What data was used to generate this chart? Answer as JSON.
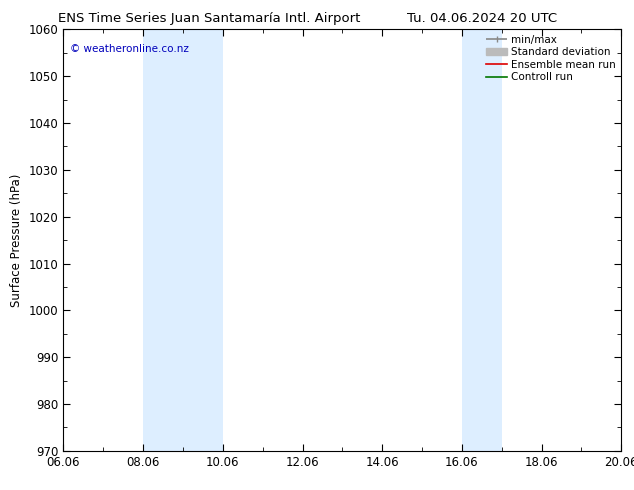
{
  "title_left": "ENS Time Series Juan Santamaría Intl. Airport",
  "title_right": "Tu. 04.06.2024 20 UTC",
  "ylabel": "Surface Pressure (hPa)",
  "ylim": [
    970,
    1060
  ],
  "yticks": [
    970,
    980,
    990,
    1000,
    1010,
    1020,
    1030,
    1040,
    1050,
    1060
  ],
  "xlim": [
    0,
    14
  ],
  "xtick_labels": [
    "06.06",
    "08.06",
    "10.06",
    "12.06",
    "14.06",
    "16.06",
    "18.06",
    "20.06"
  ],
  "xtick_positions": [
    0,
    2,
    4,
    6,
    8,
    10,
    12,
    14
  ],
  "shaded_bands": [
    {
      "x_start": 2,
      "x_end": 4
    },
    {
      "x_start": 10,
      "x_end": 11
    }
  ],
  "band_color": "#ddeeff",
  "background_color": "#ffffff",
  "copyright_text": "© weatheronline.co.nz",
  "copyright_color": "#0000bb",
  "legend_items": [
    {
      "label": "min/max",
      "color": "#888888",
      "lw": 1.2
    },
    {
      "label": "Standard deviation",
      "color": "#bbbbbb",
      "lw": 7
    },
    {
      "label": "Ensemble mean run",
      "color": "#dd0000",
      "lw": 1.2
    },
    {
      "label": "Controll run",
      "color": "#007700",
      "lw": 1.2
    }
  ],
  "title_fontsize": 9.5,
  "axis_label_fontsize": 8.5,
  "tick_fontsize": 8.5,
  "legend_fontsize": 7.5,
  "copyright_fontsize": 7.5
}
